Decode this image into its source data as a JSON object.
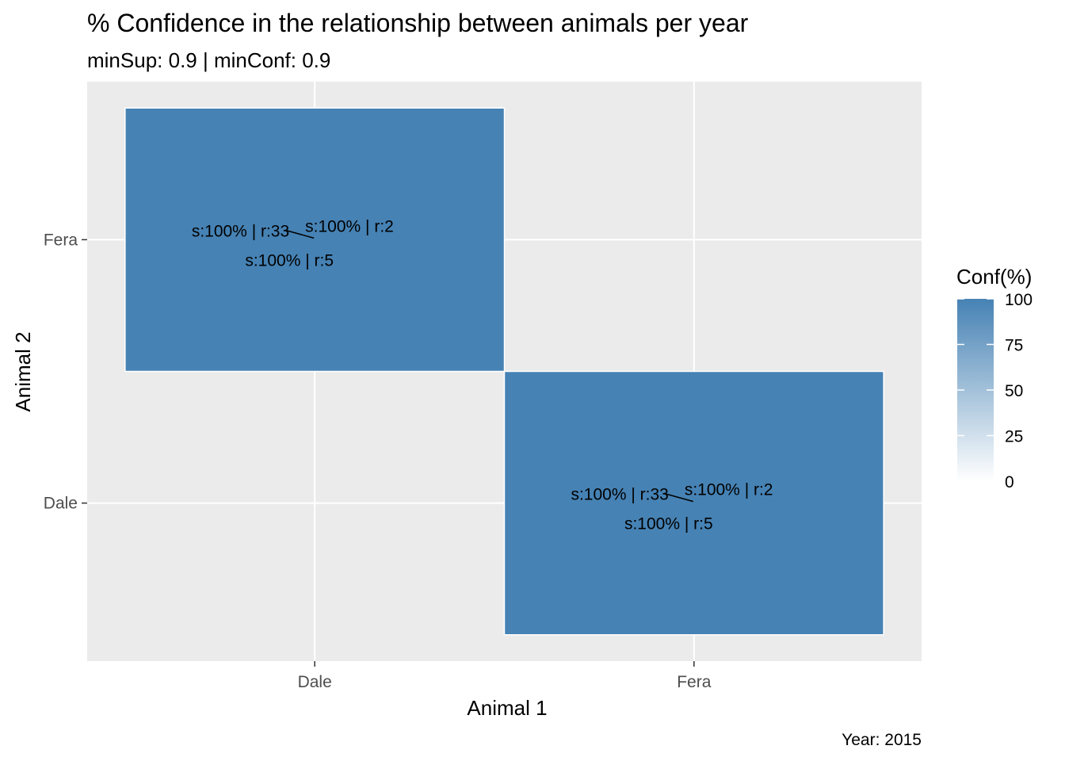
{
  "chart_data": {
    "type": "heatmap",
    "title": "% Confidence in the relationship between animals per year",
    "subtitle": "minSup: 0.9 | minConf: 0.9",
    "caption": "Year: 2015",
    "xlabel": "Animal 1",
    "ylabel": "Animal 2",
    "x_categories": [
      "Dale",
      "Fera"
    ],
    "y_categories": [
      "Dale",
      "Fera"
    ],
    "cells": [
      {
        "x": "Dale",
        "y": "Fera",
        "conf": 100,
        "labels": [
          "s:100% | r:33",
          "s:100% | r:2",
          "s:100% | r:5"
        ]
      },
      {
        "x": "Fera",
        "y": "Dale",
        "conf": 100,
        "labels": [
          "s:100% | r:33",
          "s:100% | r:2",
          "s:100% | r:5"
        ]
      }
    ],
    "legend": {
      "title": "Conf(%)",
      "position": "right",
      "range": [
        0,
        100
      ],
      "breaks": [
        0,
        25,
        50,
        75,
        100
      ],
      "low_color": "#ffffff",
      "high_color": "#4682B4"
    },
    "grid": true,
    "panel_background": "#ebebeb",
    "fill_color": "#4682B4"
  }
}
